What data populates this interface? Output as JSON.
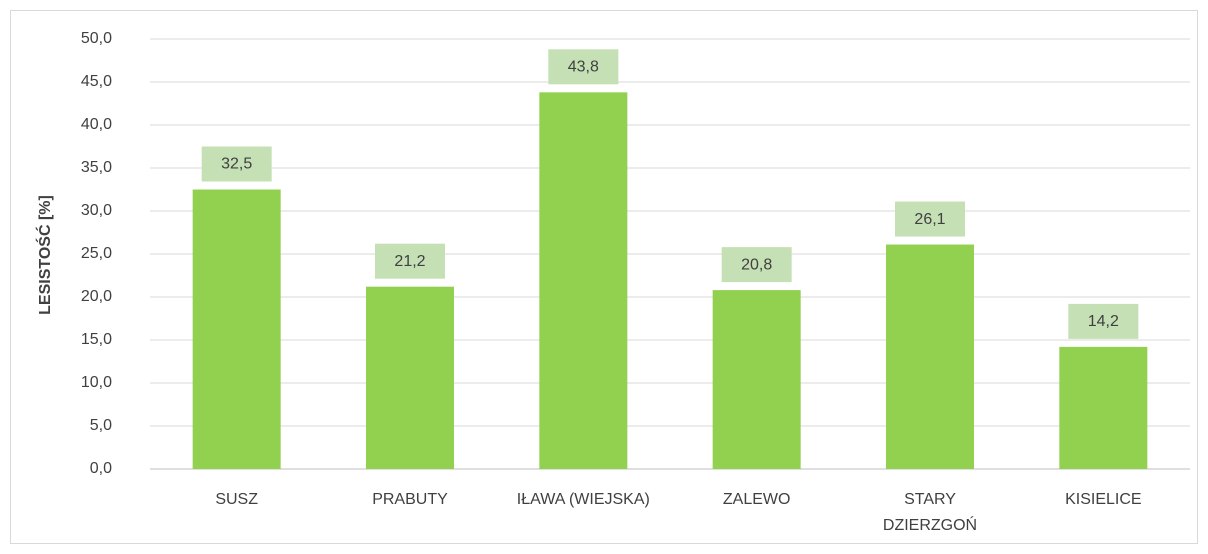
{
  "chart_data": {
    "type": "bar",
    "y_axis_label": "LESISTOŚĆ [%]",
    "categories": [
      "SUSZ",
      "PRABUTY",
      "IŁAWA (WIEJSKA)",
      "ZALEWO",
      "STARY DZIERZGOŃ",
      "KISIELICE"
    ],
    "values": [
      32.5,
      21.2,
      43.8,
      20.8,
      26.1,
      14.2
    ],
    "value_labels": [
      "32,5",
      "21,2",
      "43,8",
      "20,8",
      "26,1",
      "14,2"
    ],
    "color": "#92d050",
    "label_box_color": "#c5e0b4",
    "ylim": [
      0,
      50
    ],
    "yticks": [
      {
        "value": 0,
        "label": "0,0"
      },
      {
        "value": 5,
        "label": "5,0"
      },
      {
        "value": 10,
        "label": "10,0"
      },
      {
        "value": 15,
        "label": "15,0"
      },
      {
        "value": 20,
        "label": "20,0"
      },
      {
        "value": 25,
        "label": "25,0"
      },
      {
        "value": 30,
        "label": "30,0"
      },
      {
        "value": 35,
        "label": "35,0"
      },
      {
        "value": 40,
        "label": "40,0"
      },
      {
        "value": 45,
        "label": "45,0"
      },
      {
        "value": 50,
        "label": "50,0"
      }
    ],
    "grid": true
  }
}
